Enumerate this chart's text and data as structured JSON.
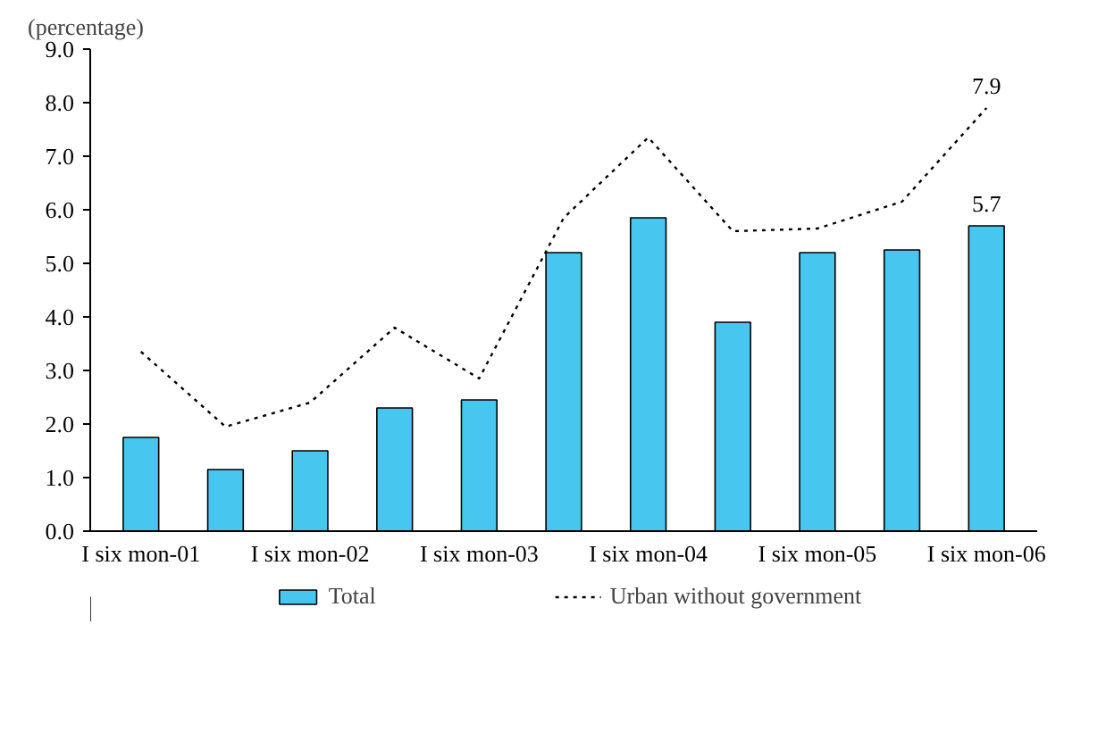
{
  "chart_data": {
    "type": "bar",
    "ylabel": "(percentage)",
    "categories": [
      "I six mon-01",
      null,
      "I six mon-02",
      null,
      "I six mon-03",
      null,
      "I six mon-04",
      null,
      "I six mon-05",
      null,
      "I six mon-06"
    ],
    "series": [
      {
        "name": "Total",
        "color": "#47c6f0",
        "values": [
          1.75,
          1.15,
          1.5,
          2.3,
          2.45,
          5.2,
          5.85,
          3.9,
          5.2,
          5.25,
          5.7
        ],
        "value_labels": [
          null,
          null,
          null,
          null,
          null,
          null,
          null,
          null,
          null,
          null,
          "5.7"
        ]
      },
      {
        "name": "Urban without government",
        "type": "line",
        "color": "#000000",
        "line_style": "dotted",
        "values": [
          3.35,
          1.95,
          2.4,
          3.8,
          2.85,
          5.85,
          7.35,
          5.6,
          5.65,
          6.15,
          7.9
        ],
        "value_labels": [
          null,
          null,
          null,
          null,
          null,
          null,
          null,
          null,
          null,
          null,
          "7.9"
        ]
      }
    ],
    "ylim": [
      0,
      9
    ],
    "yticks": [
      {
        "value": 0,
        "label": "0.0"
      },
      {
        "value": 1,
        "label": "1.0"
      },
      {
        "value": 2,
        "label": "2.0"
      },
      {
        "value": 3,
        "label": "3.0"
      },
      {
        "value": 4,
        "label": "4.0"
      },
      {
        "value": 5,
        "label": "5.0"
      },
      {
        "value": 6,
        "label": "6.0"
      },
      {
        "value": 7,
        "label": "7.0"
      },
      {
        "value": 8,
        "label": "8.0"
      },
      {
        "value": 9,
        "label": "9.0"
      }
    ],
    "grid": false,
    "legend": "bottom"
  }
}
